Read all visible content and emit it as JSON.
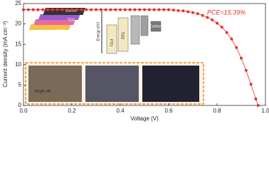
{
  "chart_data": {
    "type": "line",
    "x_label": "Voltage (V)",
    "y_label": "Current density (mA cm⁻²)",
    "annotation": "PCE=15.39%",
    "inset_texts": [
      "Carbon",
      "TiO2",
      "FTO",
      "Energy (eV)",
      "FTO",
      "TiO2",
      "Carbon",
      "Single cell"
    ],
    "xlim": [
      0,
      1.0
    ],
    "ylim": [
      0,
      25
    ],
    "xticks": [
      {
        "value": 0,
        "label": "0.0"
      },
      0.2,
      0.4,
      0.6,
      0.8,
      {
        "value": 1,
        "label": "1.0"
      }
    ],
    "yticks": [
      0,
      5,
      10,
      15,
      20,
      25
    ],
    "color": "#e8302c",
    "marker": "circle",
    "x": [
      0,
      0.02,
      0.04,
      0.06,
      0.08,
      0.1,
      0.12,
      0.14,
      0.16,
      0.18,
      0.2,
      0.22,
      0.24,
      0.26,
      0.28,
      0.3,
      0.32,
      0.34,
      0.36,
      0.38,
      0.4,
      0.42,
      0.44,
      0.46,
      0.48,
      0.5,
      0.52,
      0.54,
      0.56,
      0.58,
      0.6,
      0.62,
      0.64,
      0.66,
      0.68,
      0.7,
      0.72,
      0.74,
      0.76,
      0.78,
      0.8,
      0.82,
      0.84,
      0.86,
      0.88,
      0.9,
      0.92,
      0.94,
      0.96,
      0.97
    ],
    "values": [
      23.5,
      23.5,
      23.5,
      23.5,
      23.5,
      23.5,
      23.5,
      23.5,
      23.5,
      23.5,
      23.5,
      23.5,
      23.5,
      23.5,
      23.5,
      23.5,
      23.5,
      23.5,
      23.5,
      23.5,
      23.5,
      23.5,
      23.5,
      23.5,
      23.5,
      23.5,
      23.5,
      23.5,
      23.5,
      23.5,
      23.5,
      23.4,
      23.3,
      23.2,
      23.0,
      22.8,
      22.5,
      22.1,
      21.6,
      21.0,
      20.2,
      19.2,
      17.9,
      16.3,
      14.2,
      11.6,
      8.6,
      5.2,
      1.6,
      0
    ]
  }
}
